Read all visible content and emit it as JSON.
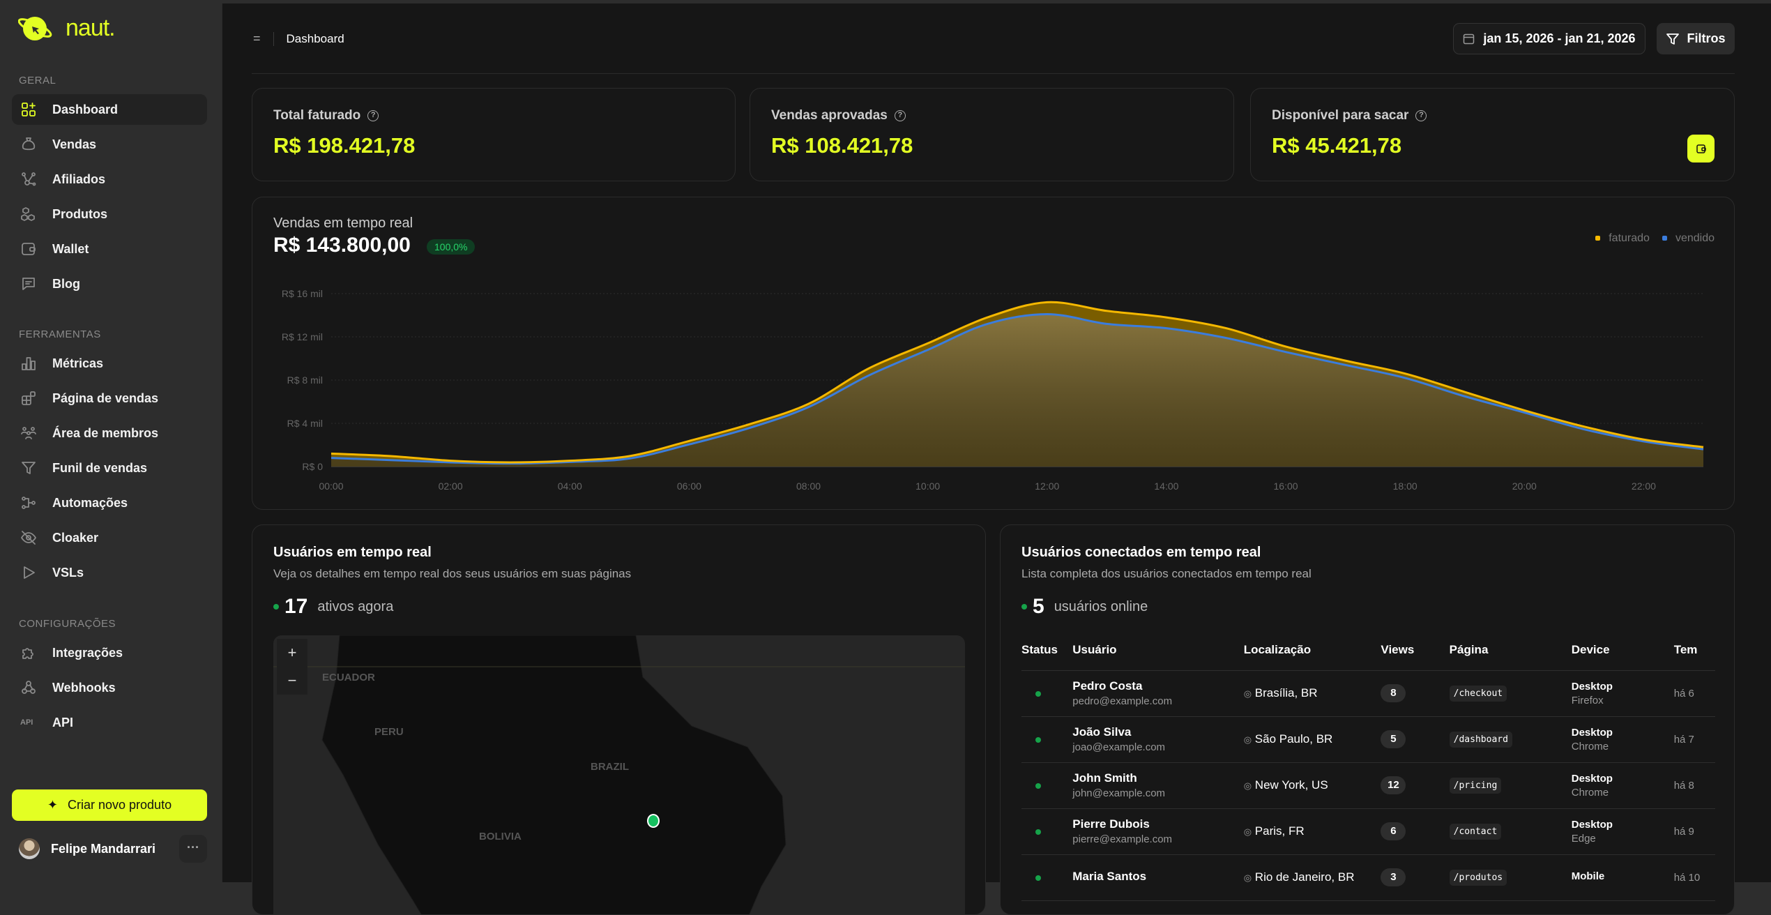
{
  "brand": {
    "name": "naut."
  },
  "sidebar": {
    "sections": [
      {
        "label": "GERAL",
        "items": [
          {
            "label": "Dashboard",
            "icon": "dashboard-icon",
            "active": true
          },
          {
            "label": "Vendas",
            "icon": "money-bag-icon"
          },
          {
            "label": "Afiliados",
            "icon": "affiliate-network-icon"
          },
          {
            "label": "Produtos",
            "icon": "boxes-icon"
          },
          {
            "label": "Wallet",
            "icon": "wallet-icon"
          },
          {
            "label": "Blog",
            "icon": "message-icon"
          }
        ]
      },
      {
        "label": "FERRAMENTAS",
        "items": [
          {
            "label": "Métricas",
            "icon": "bar-chart-icon"
          },
          {
            "label": "Página de vendas",
            "icon": "layout-icon"
          },
          {
            "label": "Área de membros",
            "icon": "users-icon"
          },
          {
            "label": "Funil de vendas",
            "icon": "funnel-icon"
          },
          {
            "label": "Automações",
            "icon": "automation-icon"
          },
          {
            "label": "Cloaker",
            "icon": "eye-off-icon"
          },
          {
            "label": "VSLs",
            "icon": "play-icon"
          }
        ]
      },
      {
        "label": "CONFIGURAÇÕES",
        "items": [
          {
            "label": "Integrações",
            "icon": "puzzle-icon"
          },
          {
            "label": "Webhooks",
            "icon": "webhook-icon"
          },
          {
            "label": "API",
            "icon": "api-icon"
          }
        ]
      }
    ],
    "create_button": "Criar novo produto",
    "user": {
      "name": "Felipe Mandarrari",
      "more": "···"
    }
  },
  "header": {
    "breadcrumb": "Dashboard",
    "date_range": "jan 15, 2026 - jan 21, 2026",
    "filter_label": "Filtros"
  },
  "stats": [
    {
      "label": "Total faturado",
      "value": "R$ 198.421,78"
    },
    {
      "label": "Vendas aprovadas",
      "value": "R$ 108.421,78"
    },
    {
      "label": "Disponível para sacar",
      "value": "R$ 45.421,78"
    }
  ],
  "realtime_sales": {
    "title": "Vendas em tempo real",
    "total": "R$ 143.800,00",
    "badge": "100,0%"
  },
  "colors": {
    "accent": "#e3ff23",
    "faturado": "#f5b800",
    "vendido": "#3b7ddd",
    "online": "#16a34a"
  },
  "chart_data": {
    "type": "area",
    "x": [
      "00:00",
      "01:00",
      "02:00",
      "03:00",
      "04:00",
      "05:00",
      "06:00",
      "07:00",
      "08:00",
      "09:00",
      "10:00",
      "11:00",
      "12:00",
      "13:00",
      "14:00",
      "15:00",
      "16:00",
      "17:00",
      "18:00",
      "19:00",
      "20:00",
      "21:00",
      "22:00",
      "23:00"
    ],
    "xticks": [
      "00:00",
      "02:00",
      "04:00",
      "06:00",
      "08:00",
      "10:00",
      "12:00",
      "14:00",
      "16:00",
      "18:00",
      "20:00",
      "22:00"
    ],
    "yticks": [
      "R$ 0",
      "R$ 4 mil",
      "R$ 8 mil",
      "R$ 12 mil",
      "R$ 16 mil"
    ],
    "ylim": [
      0,
      16000
    ],
    "grid": true,
    "legend": "top-right",
    "series": [
      {
        "name": "faturado",
        "values": [
          1200,
          970,
          540,
          390,
          540,
          970,
          2370,
          3900,
          5800,
          9050,
          11400,
          13800,
          15200,
          14400,
          13800,
          12800,
          11100,
          9800,
          8600,
          6900,
          5200,
          3700,
          2500,
          1800
        ]
      },
      {
        "name": "vendido",
        "values": [
          800,
          600,
          390,
          280,
          430,
          750,
          2050,
          3550,
          5500,
          8400,
          10800,
          13200,
          14100,
          13200,
          12800,
          11900,
          10600,
          9400,
          8200,
          6500,
          5000,
          3450,
          2330,
          1600
        ]
      }
    ]
  },
  "users_map": {
    "title": "Usuários em tempo real",
    "subtitle": "Veja os detalhes em tempo real dos seus usuários em suas páginas",
    "count": "17",
    "count_label": "ativos agora",
    "zoom_in": "+",
    "zoom_out": "−",
    "labels": [
      "ECUADOR",
      "PERU",
      "BRAZIL",
      "BOLIVIA"
    ]
  },
  "users_table": {
    "title": "Usuários conectados em tempo real",
    "subtitle": "Lista completa dos usuários conectados em tempo real",
    "count": "5",
    "count_label": "usuários online",
    "columns": [
      "Status",
      "Usuário",
      "Localização",
      "Views",
      "Página",
      "Device",
      "Tem"
    ],
    "rows": [
      {
        "name": "Pedro Costa",
        "email": "pedro@example.com",
        "location": "Brasília, BR",
        "views": "8",
        "page": "/checkout",
        "device": "Desktop",
        "browser": "Firefox",
        "time": "há 6"
      },
      {
        "name": "João Silva",
        "email": "joao@example.com",
        "location": "São Paulo, BR",
        "views": "5",
        "page": "/dashboard",
        "device": "Desktop",
        "browser": "Chrome",
        "time": "há 7"
      },
      {
        "name": "John Smith",
        "email": "john@example.com",
        "location": "New York, US",
        "views": "12",
        "page": "/pricing",
        "device": "Desktop",
        "browser": "Chrome",
        "time": "há 8"
      },
      {
        "name": "Pierre Dubois",
        "email": "pierre@example.com",
        "location": "Paris, FR",
        "views": "6",
        "page": "/contact",
        "device": "Desktop",
        "browser": "Edge",
        "time": "há 9"
      },
      {
        "name": "Maria Santos",
        "email": "",
        "location": "Rio de Janeiro, BR",
        "views": "3",
        "page": "/produtos",
        "device": "Mobile",
        "browser": "",
        "time": "há 10"
      }
    ]
  }
}
